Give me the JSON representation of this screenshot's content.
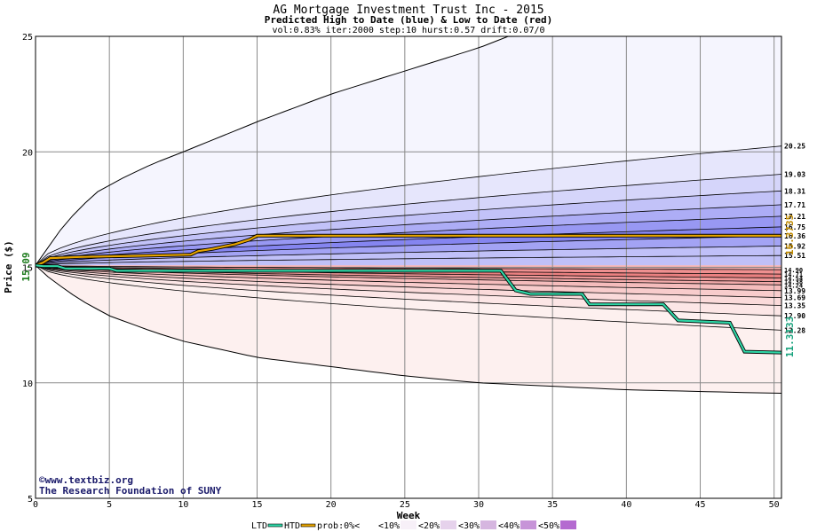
{
  "chart_data": {
    "type": "area",
    "title": "AG Mortgage Investment Trust Inc - 2015",
    "subtitle": "Predicted High to Date (blue) &  Low to Date (red)",
    "params": "vol:0.83% iter:2000 step:10 hurst:0.57 drift:0.07/0",
    "xlabel": "Week",
    "ylabel": "Price ($)",
    "xlim": [
      0,
      50.5
    ],
    "ylim": [
      5,
      25
    ],
    "x_ticks": [
      0,
      5,
      10,
      15,
      20,
      25,
      30,
      35,
      40,
      45,
      50
    ],
    "y_ticks": [
      5,
      10,
      15,
      20,
      25
    ],
    "start_price": 15.09,
    "start_price_label": "15.09",
    "grid": true,
    "high_band_labels": [
      "20.25",
      "19.03",
      "18.31",
      "17.71",
      "17.21",
      "16.75",
      "16.36",
      "15.92",
      "15.51"
    ],
    "low_band_labels": [
      "14.90",
      "14.71",
      "14.54",
      "14.38",
      "14.24",
      "13.99",
      "13.69",
      "13.35",
      "12.90",
      "12.28"
    ],
    "high_final_levels": [
      20.25,
      19.03,
      18.31,
      17.71,
      17.21,
      16.75,
      16.36,
      15.92,
      15.51
    ],
    "low_final_levels": [
      14.9,
      14.71,
      14.54,
      14.38,
      14.24,
      13.99,
      13.69,
      13.35,
      12.9,
      12.28
    ],
    "outer_high_envelope": {
      "x": [
        0,
        2,
        4,
        6,
        8,
        10,
        15,
        20,
        25,
        30,
        32
      ],
      "y": [
        15.09,
        16.9,
        18.2,
        18.9,
        19.5,
        20.0,
        21.3,
        22.5,
        23.5,
        24.5,
        25.0
      ]
    },
    "outer_low_envelope": {
      "x": [
        0,
        1,
        3,
        5,
        8,
        10,
        15,
        20,
        25,
        30,
        40,
        50
      ],
      "y": [
        15.09,
        14.5,
        13.6,
        12.9,
        12.2,
        11.8,
        11.1,
        10.7,
        10.3,
        10.0,
        9.7,
        9.55
      ]
    },
    "ltd_series": {
      "name": "LTD",
      "color": "#2fd6a6",
      "final_label": "11.3133",
      "x": [
        0,
        0.5,
        1.5,
        2,
        5,
        5.5,
        31.5,
        32.5,
        33.5,
        37,
        37.5,
        42.5,
        43.5,
        47,
        48,
        50.5
      ],
      "y": [
        15.09,
        15.05,
        15.05,
        14.95,
        14.95,
        14.85,
        14.85,
        14.0,
        13.85,
        13.85,
        13.4,
        13.4,
        12.7,
        12.6,
        11.35,
        11.31
      ]
    },
    "htd_series": {
      "name": "HTD",
      "color": "#e6a400",
      "final_label": "16.3735",
      "x": [
        0,
        0.5,
        1,
        3,
        7,
        10.5,
        11,
        12,
        13.5,
        14,
        14.5,
        15,
        20,
        50.5
      ],
      "y": [
        15.09,
        15.2,
        15.4,
        15.45,
        15.5,
        15.55,
        15.7,
        15.8,
        16.0,
        16.1,
        16.2,
        16.37,
        16.37,
        16.37
      ]
    },
    "legend": [
      {
        "label": "LTD",
        "color": "#2fd6a6"
      },
      {
        "label": "HTD",
        "color": "#e6a400"
      },
      {
        "label": "prob:0%<"
      },
      {
        "label": "<10%"
      },
      {
        "label": "<20%"
      },
      {
        "label": "<30%"
      },
      {
        "label": "<40%"
      },
      {
        "label": "<50%"
      }
    ],
    "legend_placement": "bottom",
    "legend_swatch_colors": [
      "#ffffff",
      "#f7f0f8",
      "#e6d2ec",
      "#d6b6e0",
      "#c794d8",
      "#b46ad0"
    ],
    "high_band_colors": [
      "#f5f5fe",
      "#e6e6fc",
      "#d5d5fa",
      "#c2c2f8",
      "#adadf6",
      "#9898f3",
      "#8585f0",
      "#a3a3f4",
      "#c0c0f8"
    ],
    "low_band_colors": [
      "#f4b0b0",
      "#ef9090",
      "#ea8080",
      "#ee9898",
      "#f2aaaa",
      "#f5bcbc",
      "#f8cccc",
      "#fadada",
      "#fce6e6",
      "#fdf0ef"
    ]
  },
  "watermark": {
    "line1": "©www.textbiz.org",
    "line2": "The Research Foundation of SUNY"
  }
}
